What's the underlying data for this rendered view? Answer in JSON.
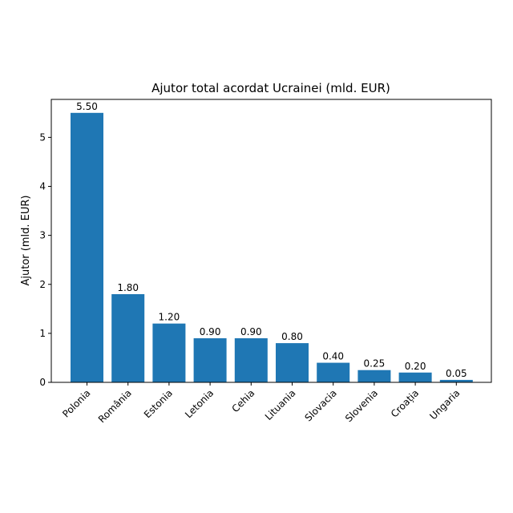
{
  "chart_data": {
    "type": "bar",
    "title": "Ajutor total acordat Ucrainei (mld. EUR)",
    "xlabel": "",
    "ylabel": "Ajutor (mld. EUR)",
    "categories": [
      "Polonia",
      "România",
      "Estonia",
      "Letonia",
      "Cehia",
      "Lituania",
      "Slovacia",
      "Slovenia",
      "Croația",
      "Ungaria"
    ],
    "values": [
      5.5,
      1.8,
      1.2,
      0.9,
      0.9,
      0.8,
      0.4,
      0.25,
      0.2,
      0.05
    ],
    "value_labels": [
      "5.50",
      "1.80",
      "1.20",
      "0.90",
      "0.90",
      "0.80",
      "0.40",
      "0.25",
      "0.20",
      "0.05"
    ],
    "yticks": [
      0,
      1,
      2,
      3,
      4,
      5
    ],
    "ylim": [
      0,
      5.775
    ],
    "bar_color": "#1f77b4",
    "grid": false,
    "legend": "none"
  }
}
